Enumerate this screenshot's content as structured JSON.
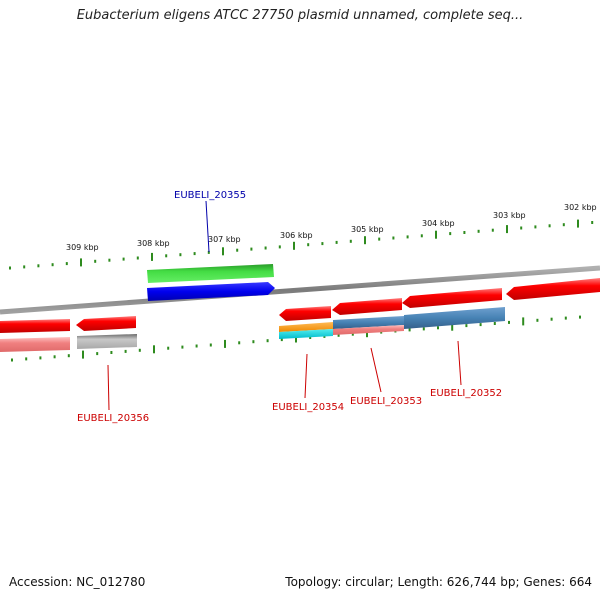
{
  "title": "Eubacterium eligens ATCC 27750 plasmid unnamed, complete seq...",
  "footer": {
    "accession": "Accession: NC_012780",
    "summary": "Topology: circular; Length: 626,744 bp; Genes: 664"
  },
  "colors": {
    "backbone": "#8a8a8a",
    "ruler": "#2e8b1e",
    "cds_red": "#ee0000",
    "rna_pink": "#f08080",
    "gene_gray": "#b0b0b0",
    "gene_green": "#33cc33",
    "gene_blue": "#0000ee",
    "gene_orange": "#ff9900",
    "gene_cyan": "#00cccc",
    "gene_steel": "#4682b4",
    "label_red": "#cc0000",
    "label_blue": "#0000aa"
  },
  "ruler_labels": [
    "309 kbp",
    "308 kbp",
    "307 kbp",
    "306 kbp",
    "305 kbp",
    "304 kbp",
    "303 kbp",
    "302 kbp"
  ],
  "gene_labels": [
    "EUBELI_20355",
    "EUBELI_20356",
    "EUBELI_20354",
    "EUBELI_20353",
    "EUBELI_20352"
  ]
}
